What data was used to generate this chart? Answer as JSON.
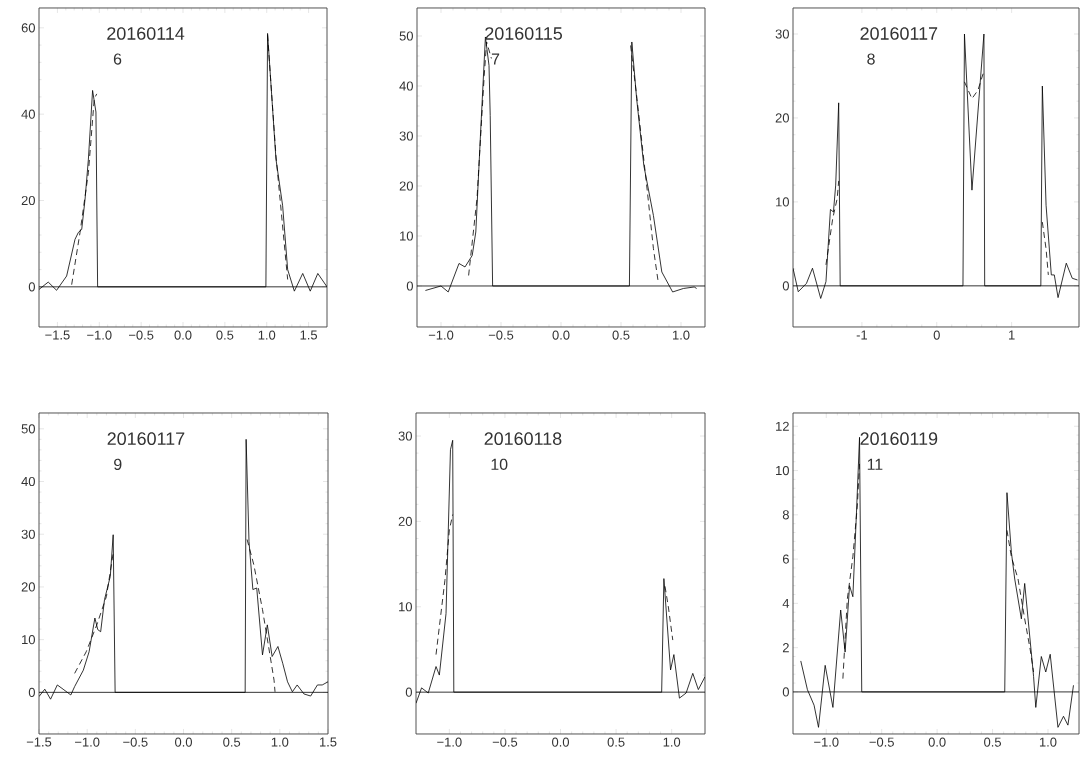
{
  "chart_data": [
    {
      "type": "line",
      "title": "20160114",
      "subtitle": "6",
      "xlim": [
        -1.72,
        1.72
      ],
      "ylim": [
        -9.3,
        64.6
      ],
      "xticks": [
        {
          "value": -1.5,
          "label": "−1.5"
        },
        {
          "value": -1.0,
          "label": "−1.0"
        },
        {
          "value": -0.5,
          "label": "−0.5"
        },
        {
          "value": 0,
          "label": "0.0"
        },
        {
          "value": 0.5,
          "label": "0.5"
        },
        {
          "value": 1.0,
          "label": "1.0"
        },
        {
          "value": 1.5,
          "label": "1.5"
        }
      ],
      "yticks": [
        0,
        20,
        40,
        60
      ],
      "ref_lines": [
        {
          "axis": "y",
          "value": 0,
          "color": "#000000"
        }
      ],
      "series": [
        {
          "color": "#000000",
          "line_style": "solid",
          "x": [
            -1.72,
            -1.61,
            -1.51,
            -1.39,
            -1.29,
            -1.25,
            -1.21,
            -1.17,
            -1.13,
            -1.08,
            -1.04,
            -1.02,
            0.99,
            1.01,
            1.11,
            1.19,
            1.25,
            1.33,
            1.43,
            1.52,
            1.61,
            1.72
          ],
          "values": [
            -0.6,
            1.1,
            -0.8,
            2.5,
            11,
            12.6,
            13.3,
            20.3,
            29.6,
            45.5,
            40.5,
            0,
            0,
            58.7,
            29.6,
            18.8,
            4,
            -1,
            3.1,
            -1,
            3.1,
            0
          ]
        },
        {
          "color": "#000000",
          "line_style": "dashed",
          "x": [
            -1.33,
            -1.23,
            -1.13,
            -1.06,
            -1.03,
            null,
            1.01,
            1.11,
            1.25
          ],
          "values": [
            0.5,
            12.6,
            26.5,
            43.6,
            44.7,
            null,
            58.3,
            30.4,
            1.7
          ]
        }
      ]
    },
    {
      "type": "line",
      "title": "20160115",
      "subtitle": "7",
      "xlim": [
        -1.2,
        1.2
      ],
      "ylim": [
        -8.2,
        55.6
      ],
      "xticks": [
        {
          "value": -1.0,
          "label": "−1.0"
        },
        {
          "value": -0.5,
          "label": "−0.5"
        },
        {
          "value": 0,
          "label": "0.0"
        },
        {
          "value": 0.5,
          "label": "0.5"
        },
        {
          "value": 1.0,
          "label": "1.0"
        }
      ],
      "yticks": [
        0,
        10,
        20,
        30,
        40,
        50
      ],
      "ref_lines": [
        {
          "axis": "y",
          "value": 0,
          "color": "#000000"
        }
      ],
      "series": [
        {
          "color": "#000000",
          "line_style": "solid",
          "x": [
            -1.13,
            -1.0,
            -0.94,
            -0.85,
            -0.8,
            -0.74,
            -0.71,
            -0.67,
            -0.63,
            -0.6,
            -0.59,
            -0.57,
            0.57,
            0.59,
            0.63,
            0.69,
            0.77,
            0.84,
            0.93,
            1.02,
            1.11,
            1.13
          ],
          "values": [
            -0.9,
            0,
            -1.2,
            4.5,
            3.8,
            6.1,
            10.8,
            30.8,
            49.8,
            44.1,
            34.1,
            0,
            0,
            48.8,
            37.5,
            24.1,
            14.1,
            2.8,
            -1.2,
            -0.5,
            -0.2,
            -0.5
          ]
        },
        {
          "color": "#000000",
          "line_style": "dashed",
          "x": [
            -0.77,
            -0.7,
            -0.64,
            -0.62,
            -0.58,
            null,
            0.58,
            0.63,
            0.72,
            0.77,
            0.81
          ],
          "values": [
            2.1,
            17.5,
            42.1,
            48.8,
            45.5,
            null,
            48.1,
            38.1,
            18.8,
            7.5,
            0.8
          ]
        }
      ]
    },
    {
      "type": "line",
      "title": "20160117",
      "subtitle": "8",
      "xlim": [
        -1.92,
        1.9
      ],
      "ylim": [
        -4.9,
        33.1
      ],
      "xticks": [
        -1,
        0,
        1
      ],
      "yticks": [
        0,
        10,
        20,
        30
      ],
      "ref_lines": [
        {
          "axis": "y",
          "value": 0,
          "color": "#000000"
        }
      ],
      "series": [
        {
          "color": "#000000",
          "line_style": "solid",
          "x": [
            -1.92,
            -1.85,
            -1.74,
            -1.66,
            -1.55,
            -1.48,
            -1.42,
            -1.38,
            -1.35,
            -1.31,
            -1.29,
            0.35,
            0.37,
            0.47,
            0.63,
            0.64,
            1.39,
            1.41,
            1.46,
            1.53,
            1.57,
            1.62,
            1.73,
            1.81,
            1.88
          ],
          "values": [
            2.1,
            -0.7,
            0.3,
            2.1,
            -1.5,
            0.5,
            9.1,
            8.8,
            12,
            21.8,
            0,
            0,
            30,
            11.4,
            30,
            0,
            0,
            23.8,
            9.6,
            1.3,
            1.3,
            -1.4,
            2.7,
            0.9,
            0.7
          ]
        },
        {
          "color": "#000000",
          "line_style": "dashed",
          "x": [
            -1.48,
            -1.39,
            -1.33,
            -1.31,
            null,
            0.37,
            0.47,
            0.55,
            0.62,
            null,
            1.41,
            1.46,
            1.49
          ],
          "values": [
            2.5,
            8,
            10.4,
            12.5,
            null,
            24.3,
            22.3,
            23.3,
            25.3,
            null,
            7.6,
            4.4,
            1.3
          ]
        }
      ]
    },
    {
      "type": "line",
      "title": "20160117",
      "subtitle": "9",
      "xlim": [
        -1.5,
        1.5
      ],
      "ylim": [
        -7.9,
        53
      ],
      "xticks": [
        {
          "value": -1.5,
          "label": "−1.5"
        },
        {
          "value": -1.0,
          "label": "−1.0"
        },
        {
          "value": -0.5,
          "label": "−0.5"
        },
        {
          "value": 0,
          "label": "0.0"
        },
        {
          "value": 0.5,
          "label": "0.5"
        },
        {
          "value": 1.0,
          "label": "1.0"
        },
        {
          "value": 1.5,
          "label": "1.5"
        }
      ],
      "yticks": [
        0,
        10,
        20,
        30,
        40,
        50
      ],
      "ref_lines": [
        {
          "axis": "y",
          "value": 0,
          "color": "#000000"
        }
      ],
      "series": [
        {
          "color": "#000000",
          "line_style": "solid",
          "x": [
            -1.5,
            -1.44,
            -1.38,
            -1.31,
            -1.25,
            -1.17,
            -1.13,
            -1.04,
            -0.98,
            -0.92,
            -0.89,
            -0.86,
            -0.82,
            -0.76,
            -0.73,
            -0.71,
            0.64,
            0.65,
            0.68,
            0.72,
            0.76,
            0.82,
            0.87,
            0.92,
            0.98,
            1.03,
            1.08,
            1.13,
            1.18,
            1.25,
            1.32,
            1.39,
            1.44,
            1.5
          ],
          "values": [
            -0.8,
            0.6,
            -1.3,
            1.4,
            0.6,
            -0.5,
            1.1,
            4.2,
            7.7,
            14.1,
            11.9,
            11.5,
            17.6,
            22,
            29.9,
            0,
            0,
            48,
            28.6,
            19.5,
            19.8,
            7.1,
            12.8,
            6.8,
            8.7,
            5.5,
            2,
            0.1,
            1.4,
            -0.3,
            -0.7,
            1.4,
            1.4,
            2
          ]
        },
        {
          "color": "#000000",
          "line_style": "dashed",
          "x": [
            -1.13,
            -1.01,
            -0.9,
            -0.8,
            -0.73,
            null,
            0.66,
            0.73,
            0.82,
            0.9,
            0.94,
            0.95
          ],
          "values": [
            3.6,
            7.7,
            12.8,
            18.2,
            26.4,
            null,
            29,
            24.2,
            15.7,
            6.8,
            2.3,
            0.1
          ]
        }
      ]
    },
    {
      "type": "line",
      "title": "20160118",
      "subtitle": "10",
      "xlim": [
        -1.3,
        1.3
      ],
      "ylim": [
        -4.9,
        32.7
      ],
      "xticks": [
        {
          "value": -1.0,
          "label": "−1.0"
        },
        {
          "value": -0.5,
          "label": "−0.5"
        },
        {
          "value": 0,
          "label": "0.0"
        },
        {
          "value": 0.5,
          "label": "0.5"
        },
        {
          "value": 1.0,
          "label": "1.0"
        }
      ],
      "yticks": [
        0,
        10,
        20,
        30
      ],
      "ref_lines": [
        {
          "axis": "y",
          "value": 0,
          "color": "#000000"
        }
      ],
      "series": [
        {
          "color": "#000000",
          "line_style": "solid",
          "x": [
            -1.3,
            -1.25,
            -1.19,
            -1.12,
            -1.09,
            -1.03,
            -0.99,
            -0.97,
            -0.96,
            0.91,
            0.93,
            0.99,
            1.02,
            1.07,
            1.13,
            1.19,
            1.24,
            1.3
          ],
          "values": [
            -1.3,
            0.5,
            -0.1,
            3,
            2,
            9.2,
            28.4,
            29.5,
            0,
            0,
            13.3,
            2.6,
            4.4,
            -0.7,
            -0.1,
            2.2,
            0.3,
            1.8
          ]
        },
        {
          "color": "#000000",
          "line_style": "dashed",
          "x": [
            -1.12,
            -1.04,
            -1.0,
            -0.97,
            null,
            0.94,
            0.97,
            1.01
          ],
          "values": [
            4.4,
            13.1,
            19,
            20.8,
            null,
            12.4,
            10,
            6.1
          ]
        }
      ]
    },
    {
      "type": "line",
      "title": "20160119",
      "subtitle": "11",
      "xlim": [
        -1.3,
        1.28
      ],
      "ylim": [
        -1.9,
        12.6
      ],
      "xticks": [
        {
          "value": -1.0,
          "label": "−1.0"
        },
        {
          "value": -0.5,
          "label": "−0.5"
        },
        {
          "value": 0,
          "label": "0.0"
        },
        {
          "value": 0.5,
          "label": "0.5"
        },
        {
          "value": 1.0,
          "label": "1.0"
        }
      ],
      "yticks": [
        0,
        2,
        4,
        6,
        8,
        10,
        12
      ],
      "ref_lines": [
        {
          "axis": "y",
          "value": 0,
          "color": "#000000"
        }
      ],
      "series": [
        {
          "color": "#000000",
          "line_style": "solid",
          "x": [
            -1.23,
            -1.17,
            -1.11,
            -1.07,
            -1.01,
            -0.94,
            -0.87,
            -0.83,
            -0.79,
            -0.76,
            -0.73,
            -0.7,
            -0.68,
            0.61,
            0.63,
            0.67,
            0.7,
            0.76,
            0.79,
            0.87,
            0.89,
            0.94,
            0.98,
            1.02,
            1.09,
            1.14,
            1.18,
            1.23
          ],
          "values": [
            1.4,
            0.1,
            -0.6,
            -1.6,
            1.2,
            -0.7,
            3.7,
            1.8,
            4.8,
            4.3,
            7.8,
            11.5,
            0,
            0,
            9,
            6.3,
            5.1,
            3.3,
            4.9,
            0.7,
            -0.7,
            1.6,
            0.9,
            1.7,
            -1.6,
            -1.1,
            -1.5,
            0.3
          ]
        },
        {
          "color": "#000000",
          "line_style": "dashed",
          "x": [
            -0.85,
            -0.81,
            -0.76,
            -0.72,
            -0.7,
            null,
            0.63,
            0.67,
            0.73,
            0.79,
            0.84,
            0.87
          ],
          "values": [
            0.6,
            4.2,
            6.1,
            8.4,
            10.3,
            null,
            7.3,
            6.1,
            5.1,
            3.3,
            1.9,
            0.9
          ]
        }
      ]
    }
  ]
}
